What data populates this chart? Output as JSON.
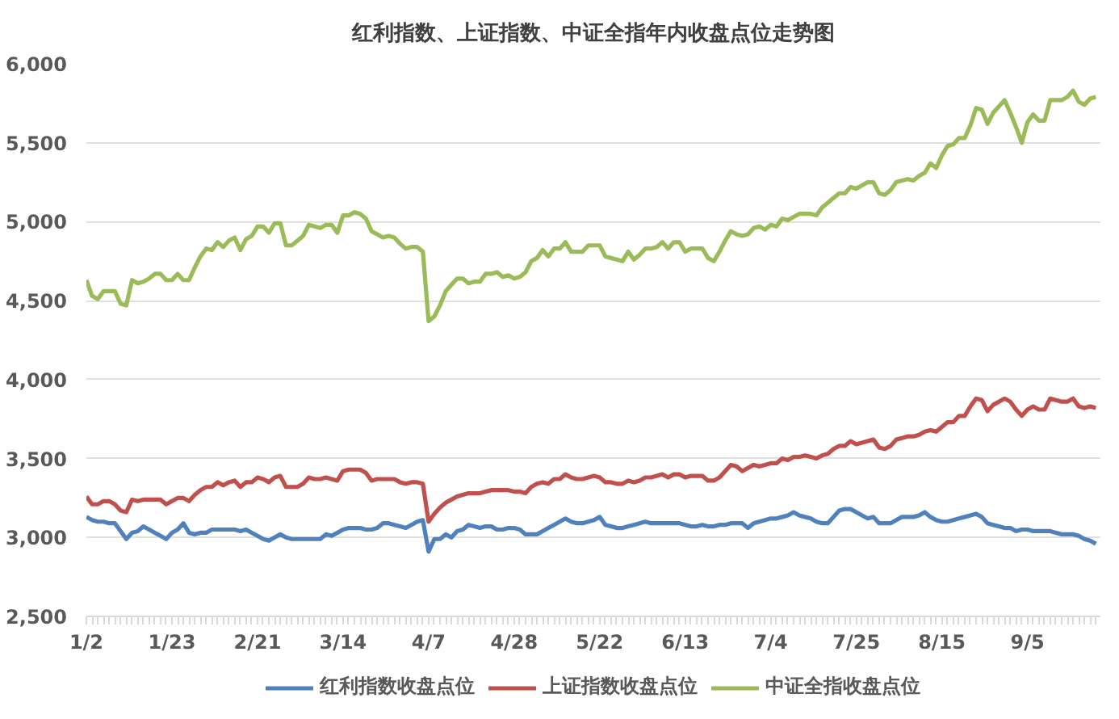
{
  "chart_data": {
    "type": "line",
    "title": "红利指数、上证指数、中证全指年内收盘点位走势图",
    "categories": [
      "1/2",
      null,
      null,
      null,
      null,
      null,
      null,
      null,
      null,
      null,
      null,
      null,
      null,
      null,
      null,
      "1/23",
      null,
      null,
      null,
      null,
      null,
      null,
      null,
      null,
      null,
      null,
      null,
      null,
      null,
      null,
      "2/21",
      null,
      null,
      null,
      null,
      null,
      null,
      null,
      null,
      null,
      null,
      null,
      null,
      null,
      null,
      "3/14",
      null,
      null,
      null,
      null,
      null,
      null,
      null,
      null,
      null,
      null,
      null,
      null,
      null,
      null,
      "4/7",
      null,
      null,
      null,
      null,
      null,
      null,
      null,
      null,
      null,
      null,
      null,
      null,
      null,
      null,
      "4/28",
      null,
      null,
      null,
      null,
      null,
      null,
      null,
      null,
      null,
      null,
      null,
      null,
      null,
      null,
      "5/22",
      null,
      null,
      null,
      null,
      null,
      null,
      null,
      null,
      null,
      null,
      null,
      null,
      null,
      null,
      "6/13",
      null,
      null,
      null,
      null,
      null,
      null,
      null,
      null,
      null,
      null,
      null,
      null,
      null,
      null,
      "7/4",
      null,
      null,
      null,
      null,
      null,
      null,
      null,
      null,
      null,
      null,
      null,
      null,
      null,
      null,
      "7/25",
      null,
      null,
      null,
      null,
      null,
      null,
      null,
      null,
      null,
      null,
      null,
      null,
      null,
      null,
      "8/15",
      null,
      null,
      null,
      null,
      null,
      null,
      null,
      null,
      null,
      null,
      null,
      null,
      null,
      null,
      "9/5",
      null,
      null,
      null,
      null,
      null,
      null,
      null,
      null,
      null,
      null,
      null,
      null
    ],
    "series": [
      {
        "name": "红利指数收盘点位",
        "color": "#4f81bd",
        "values": [
          3130,
          3110,
          3100,
          3100,
          3090,
          3090,
          3040,
          2990,
          3030,
          3040,
          3070,
          3050,
          3030,
          3010,
          2990,
          3030,
          3050,
          3090,
          3030,
          3020,
          3030,
          3030,
          3050,
          3050,
          3050,
          3050,
          3050,
          3040,
          3050,
          3030,
          3010,
          2990,
          2980,
          3000,
          3020,
          3000,
          2990,
          2990,
          2990,
          2990,
          2990,
          2990,
          3020,
          3010,
          3030,
          3050,
          3060,
          3060,
          3060,
          3050,
          3050,
          3060,
          3090,
          3090,
          3080,
          3070,
          3060,
          3080,
          3100,
          3110,
          2910,
          2990,
          2990,
          3020,
          3000,
          3040,
          3050,
          3080,
          3070,
          3060,
          3070,
          3070,
          3050,
          3050,
          3060,
          3060,
          3050,
          3020,
          3020,
          3020,
          3040,
          3060,
          3080,
          3100,
          3120,
          3100,
          3090,
          3090,
          3100,
          3110,
          3130,
          3080,
          3070,
          3060,
          3060,
          3070,
          3080,
          3090,
          3100,
          3090,
          3090,
          3090,
          3090,
          3090,
          3090,
          3080,
          3070,
          3070,
          3080,
          3070,
          3070,
          3080,
          3080,
          3090,
          3090,
          3090,
          3060,
          3090,
          3100,
          3110,
          3120,
          3120,
          3130,
          3140,
          3160,
          3140,
          3130,
          3120,
          3100,
          3090,
          3090,
          3130,
          3170,
          3180,
          3180,
          3160,
          3140,
          3120,
          3130,
          3090,
          3090,
          3090,
          3110,
          3130,
          3130,
          3130,
          3140,
          3160,
          3130,
          3110,
          3100,
          3100,
          3110,
          3120,
          3130,
          3140,
          3150,
          3130,
          3090,
          3080,
          3070,
          3060,
          3060,
          3040,
          3050,
          3050,
          3040,
          3040,
          3040,
          3040,
          3030,
          3020,
          3020,
          3020,
          3010,
          2990,
          2980,
          2960
        ]
      },
      {
        "name": "上证指数收盘点位",
        "color": "#c0504d",
        "values": [
          3260,
          3210,
          3210,
          3230,
          3230,
          3210,
          3170,
          3160,
          3240,
          3230,
          3240,
          3240,
          3240,
          3240,
          3210,
          3230,
          3250,
          3250,
          3230,
          3270,
          3300,
          3320,
          3320,
          3350,
          3330,
          3350,
          3360,
          3320,
          3350,
          3350,
          3380,
          3370,
          3350,
          3380,
          3390,
          3320,
          3320,
          3320,
          3340,
          3380,
          3370,
          3370,
          3380,
          3370,
          3360,
          3420,
          3430,
          3430,
          3430,
          3410,
          3360,
          3370,
          3370,
          3370,
          3370,
          3350,
          3340,
          3350,
          3350,
          3340,
          3100,
          3150,
          3190,
          3220,
          3240,
          3260,
          3270,
          3280,
          3280,
          3280,
          3290,
          3300,
          3300,
          3300,
          3300,
          3290,
          3290,
          3280,
          3320,
          3340,
          3350,
          3340,
          3370,
          3370,
          3400,
          3380,
          3370,
          3370,
          3380,
          3390,
          3380,
          3350,
          3350,
          3340,
          3340,
          3360,
          3350,
          3360,
          3380,
          3380,
          3390,
          3400,
          3380,
          3400,
          3400,
          3380,
          3390,
          3390,
          3390,
          3360,
          3360,
          3380,
          3420,
          3460,
          3450,
          3420,
          3440,
          3460,
          3450,
          3460,
          3470,
          3470,
          3500,
          3490,
          3510,
          3510,
          3520,
          3510,
          3500,
          3520,
          3530,
          3560,
          3580,
          3580,
          3610,
          3590,
          3600,
          3610,
          3620,
          3570,
          3560,
          3580,
          3620,
          3630,
          3640,
          3640,
          3650,
          3670,
          3680,
          3670,
          3700,
          3730,
          3730,
          3770,
          3770,
          3830,
          3880,
          3870,
          3800,
          3840,
          3860,
          3880,
          3860,
          3810,
          3770,
          3810,
          3830,
          3810,
          3810,
          3880,
          3870,
          3860,
          3860,
          3880,
          3830,
          3820,
          3830,
          3820
        ]
      },
      {
        "name": "中证全指收盘点位",
        "color": "#9bbb59",
        "values": [
          4630,
          4530,
          4510,
          4560,
          4560,
          4560,
          4480,
          4470,
          4630,
          4610,
          4620,
          4640,
          4670,
          4670,
          4630,
          4630,
          4670,
          4630,
          4630,
          4710,
          4780,
          4830,
          4820,
          4870,
          4840,
          4880,
          4900,
          4820,
          4890,
          4910,
          4970,
          4970,
          4930,
          4990,
          4990,
          4850,
          4850,
          4880,
          4910,
          4980,
          4970,
          4960,
          4980,
          4980,
          4930,
          5040,
          5040,
          5060,
          5050,
          5020,
          4940,
          4920,
          4900,
          4910,
          4900,
          4860,
          4830,
          4840,
          4840,
          4810,
          4370,
          4400,
          4470,
          4560,
          4600,
          4640,
          4640,
          4610,
          4620,
          4620,
          4670,
          4670,
          4680,
          4650,
          4660,
          4640,
          4650,
          4680,
          4750,
          4770,
          4820,
          4780,
          4830,
          4830,
          4870,
          4810,
          4810,
          4810,
          4850,
          4850,
          4850,
          4780,
          4770,
          4760,
          4750,
          4810,
          4760,
          4790,
          4830,
          4830,
          4840,
          4870,
          4830,
          4870,
          4870,
          4810,
          4830,
          4830,
          4830,
          4770,
          4750,
          4810,
          4880,
          4940,
          4920,
          4910,
          4920,
          4960,
          4970,
          4950,
          4980,
          4970,
          5020,
          5010,
          5030,
          5050,
          5050,
          5050,
          5040,
          5090,
          5120,
          5150,
          5180,
          5180,
          5220,
          5210,
          5230,
          5250,
          5250,
          5180,
          5170,
          5200,
          5250,
          5260,
          5270,
          5260,
          5290,
          5310,
          5370,
          5340,
          5420,
          5480,
          5490,
          5530,
          5530,
          5610,
          5720,
          5710,
          5620,
          5690,
          5730,
          5770,
          5690,
          5600,
          5500,
          5630,
          5680,
          5640,
          5640,
          5770,
          5770,
          5770,
          5790,
          5830,
          5760,
          5740,
          5780,
          5790
        ]
      }
    ],
    "ylim": [
      2500,
      6000
    ],
    "yticks": [
      {
        "value": 2500,
        "label": "2,500"
      },
      {
        "value": 3000,
        "label": "3,000"
      },
      {
        "value": 3500,
        "label": "3,500"
      },
      {
        "value": 4000,
        "label": "4,000"
      },
      {
        "value": 4500,
        "label": "4,500"
      },
      {
        "value": 5000,
        "label": "5,000"
      },
      {
        "value": 5500,
        "label": "5,500"
      },
      {
        "value": 6000,
        "label": "6,000"
      }
    ],
    "grid": "y",
    "legend": "bottom",
    "line_style": "solid"
  }
}
